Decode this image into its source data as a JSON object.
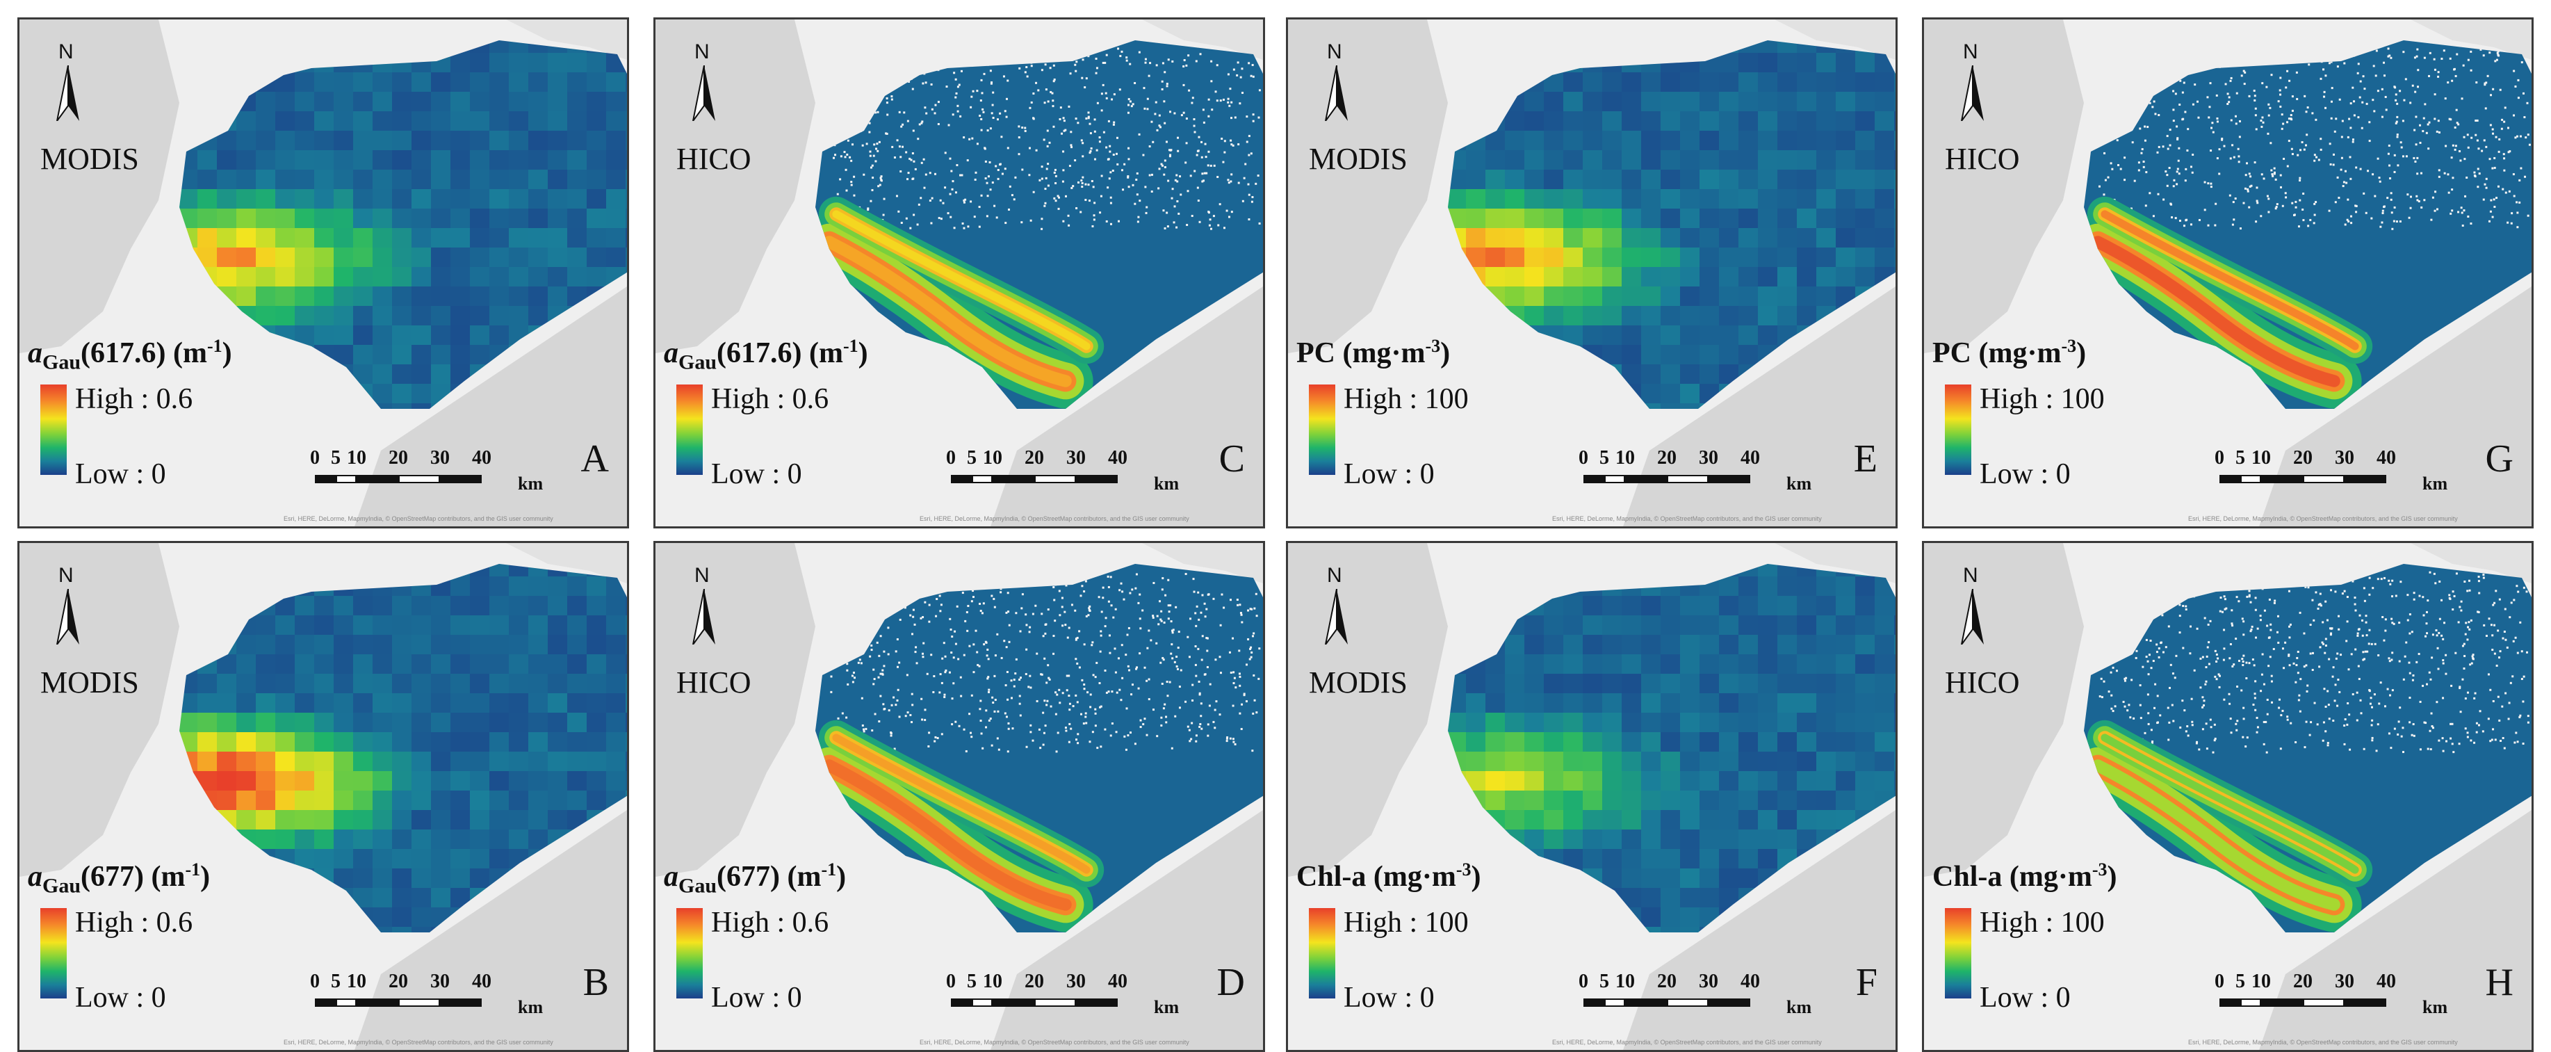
{
  "panels": [
    {
      "letter": "A",
      "sensor": "MODIS",
      "var_main": "a",
      "var_sub": "Gau",
      "var_rest": "(617.6) (m",
      "var_sup": "-1",
      "var_end": ")",
      "high": "High : 0.6",
      "low": "Low : 0",
      "kind": "modis",
      "warm": 0.75
    },
    {
      "letter": "C",
      "sensor": "HICO",
      "var_main": "a",
      "var_sub": "Gau",
      "var_rest": "(617.6) (m",
      "var_sup": "-1",
      "var_end": ")",
      "high": "High : 0.6",
      "low": "Low : 0",
      "kind": "hico",
      "warm": 0.8
    },
    {
      "letter": "E",
      "sensor": "MODIS",
      "var_main": "PC",
      "var_sub": "",
      "var_rest": " (mg·m",
      "var_sup": "-3",
      "var_end": ")",
      "high": "High : 100",
      "low": "Low : 0",
      "kind": "modis",
      "warm": 0.8
    },
    {
      "letter": "G",
      "sensor": "HICO",
      "var_main": "PC",
      "var_sub": "",
      "var_rest": " (mg·m",
      "var_sup": "-3",
      "var_end": ")",
      "high": "High : 100",
      "low": "Low : 0",
      "kind": "hico",
      "warm": 0.95
    },
    {
      "letter": "B",
      "sensor": "MODIS",
      "var_main": "a",
      "var_sub": "Gau",
      "var_rest": "(677) (m",
      "var_sup": "-1",
      "var_end": ")",
      "high": "High : 0.6",
      "low": "Low : 0",
      "kind": "modis",
      "warm": 1.0
    },
    {
      "letter": "D",
      "sensor": "HICO",
      "var_main": "a",
      "var_sub": "Gau",
      "var_rest": "(677) (m",
      "var_sup": "-1",
      "var_end": ")",
      "high": "High : 0.6",
      "low": "Low : 0",
      "kind": "hico",
      "warm": 0.9
    },
    {
      "letter": "F",
      "sensor": "MODIS",
      "var_main": "Chl-a",
      "var_sub": "",
      "var_rest": " (mg·m",
      "var_sup": "-3",
      "var_end": ")",
      "high": "High : 100",
      "low": "Low : 0",
      "kind": "modis",
      "warm": 0.55
    },
    {
      "letter": "H",
      "sensor": "HICO",
      "var_main": "Chl-a",
      "var_sub": "",
      "var_rest": " (mg·m",
      "var_sup": "-3",
      "var_end": ")",
      "high": "High : 100",
      "low": "Low : 0",
      "kind": "hico",
      "warm": 0.6
    }
  ],
  "north_label": "N",
  "scale_ticks": [
    "0",
    "5",
    "10",
    "20",
    "30",
    "40"
  ],
  "scale_unit": "km",
  "credit": "Esri, HERE, DeLorme, MapmyIndia, © OpenStreetMap contributors, and the GIS user community",
  "colors": {
    "high": "#e8402a",
    "mid": "#f4e41e",
    "low": "#1b3f8a",
    "land": "#d6d6d6",
    "bg": "#efefef"
  }
}
